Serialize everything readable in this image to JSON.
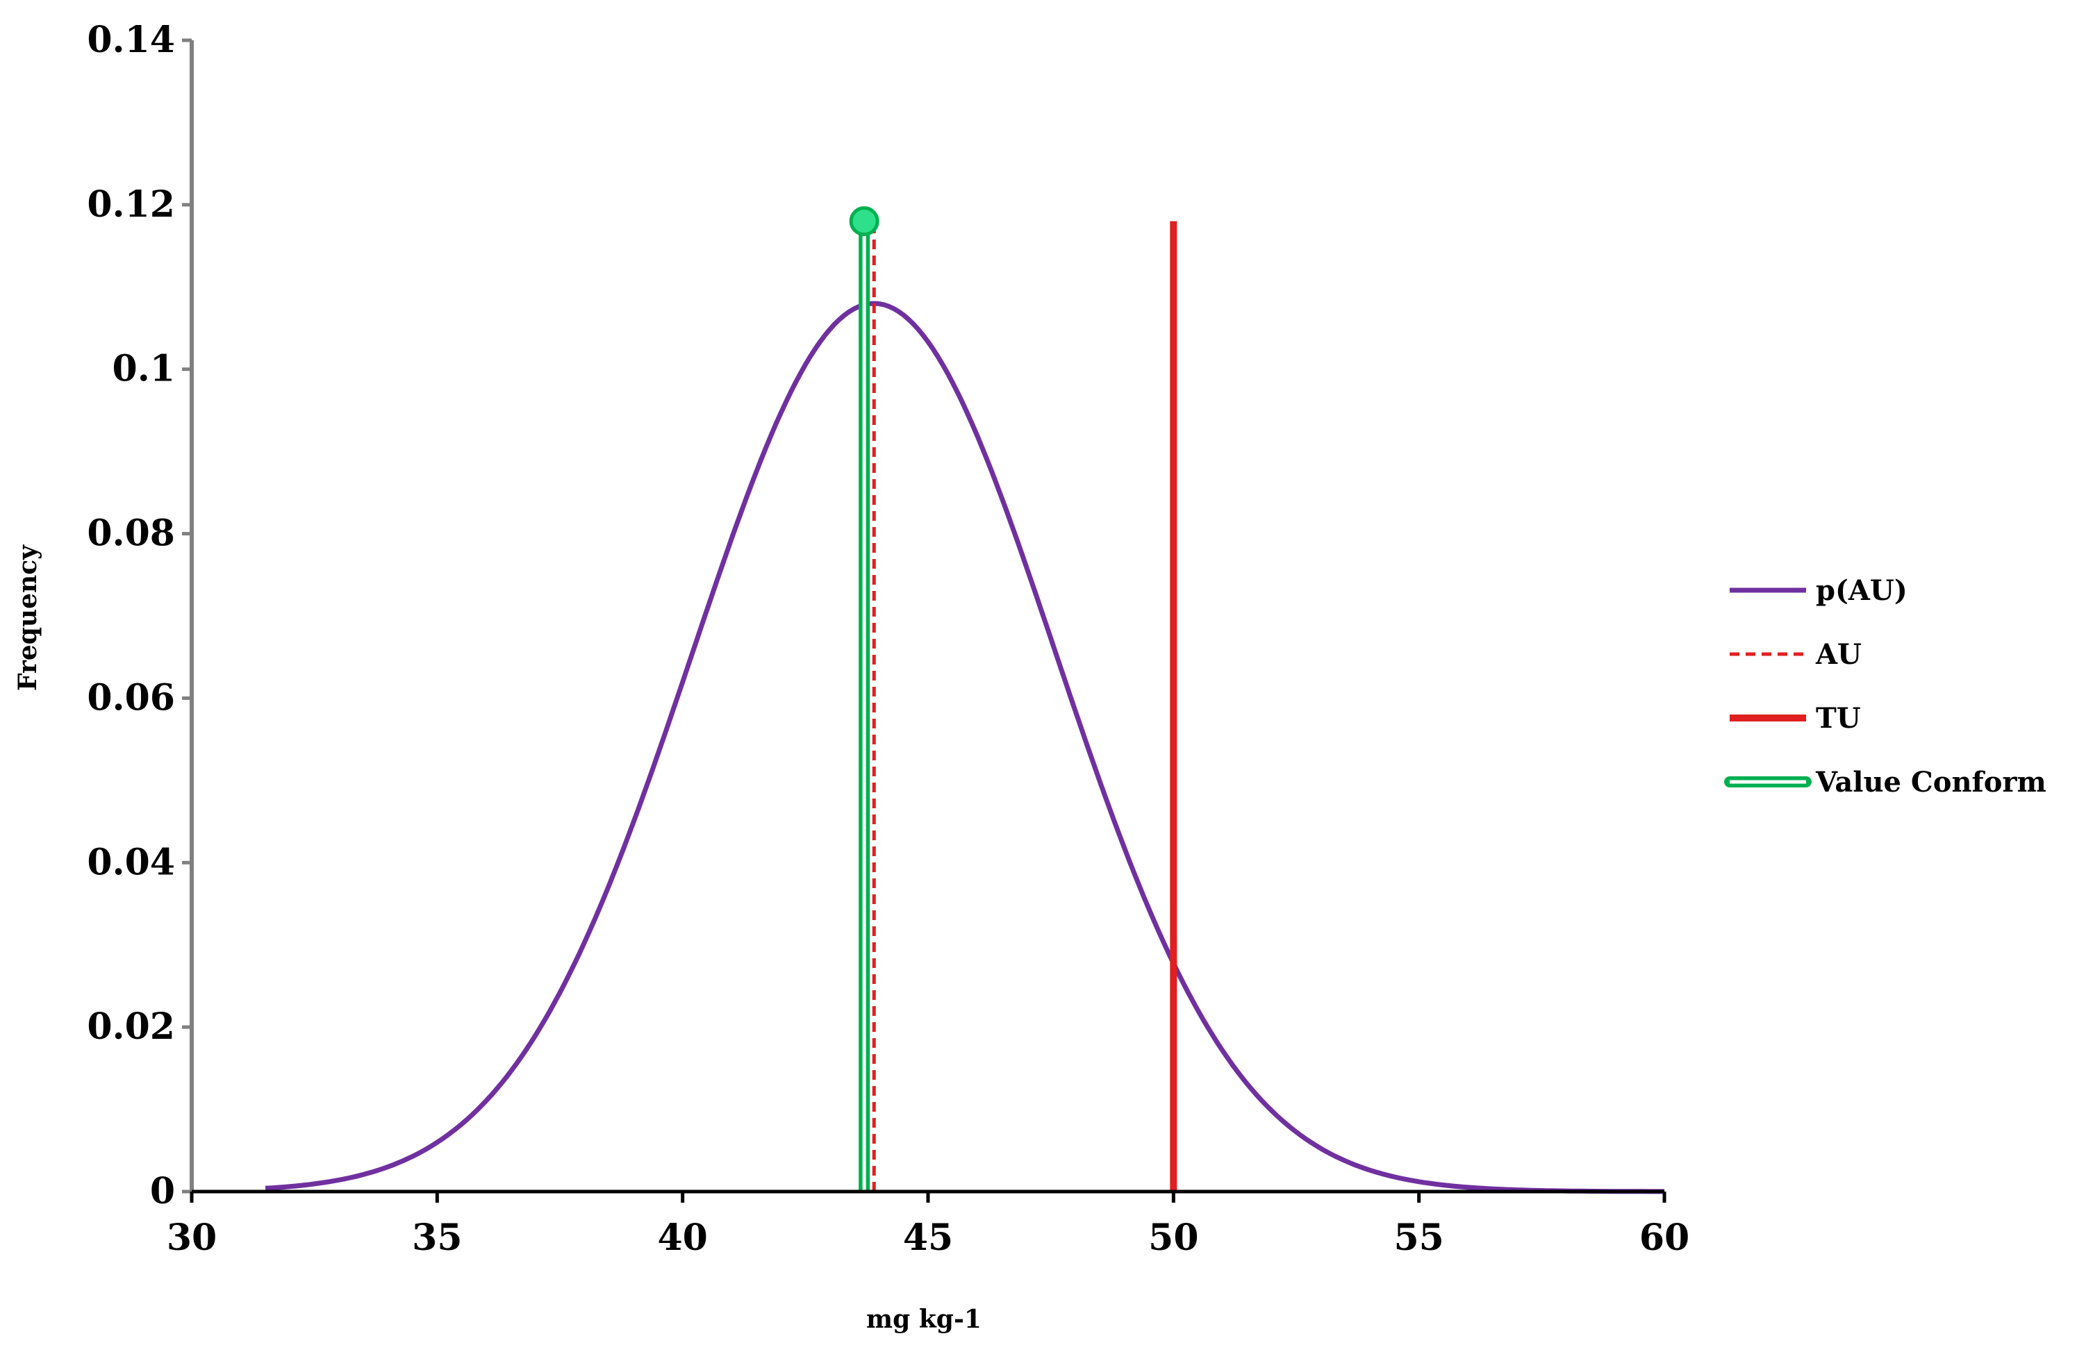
{
  "chart_data": {
    "type": "line",
    "title": "",
    "xlabel": "mg kg-1",
    "ylabel": "Frequency",
    "xlim": [
      30,
      60
    ],
    "ylim": [
      0,
      0.14
    ],
    "x_ticks": [
      30,
      35,
      40,
      45,
      50,
      55,
      60
    ],
    "x_tick_labels": [
      "30",
      "35",
      "40",
      "45",
      "50",
      "55",
      "60"
    ],
    "y_ticks": [
      0,
      0.02,
      0.04,
      0.06,
      0.08,
      0.1,
      0.12,
      0.14
    ],
    "y_tick_labels": [
      "0",
      "0.02",
      "0.04",
      "0.06",
      "0.08",
      "0.1",
      "0.12",
      "0.14"
    ],
    "grid": false,
    "legend_position": "right",
    "series": [
      {
        "name": "p(AU)",
        "kind": "curve",
        "color": "#7030A0",
        "x_range": [
          31.5,
          60
        ],
        "mean": 43.9,
        "sd": 3.7,
        "peak": 0.108
      },
      {
        "name": "AU",
        "kind": "vertical-line",
        "color": "#E02020",
        "style": "dashed",
        "x": 43.9,
        "y_range": [
          0,
          0.118
        ]
      },
      {
        "name": "TU",
        "kind": "vertical-line",
        "color": "#E02020",
        "style": "solid",
        "x": 50,
        "y_range": [
          0,
          0.118
        ]
      },
      {
        "name": "Value Conform",
        "kind": "vertical-line",
        "color": "#00B050",
        "fill": "#2EE08A",
        "style": "double",
        "x": 43.7,
        "y_range": [
          0,
          0.118
        ],
        "marker_y": 0.118
      }
    ]
  }
}
